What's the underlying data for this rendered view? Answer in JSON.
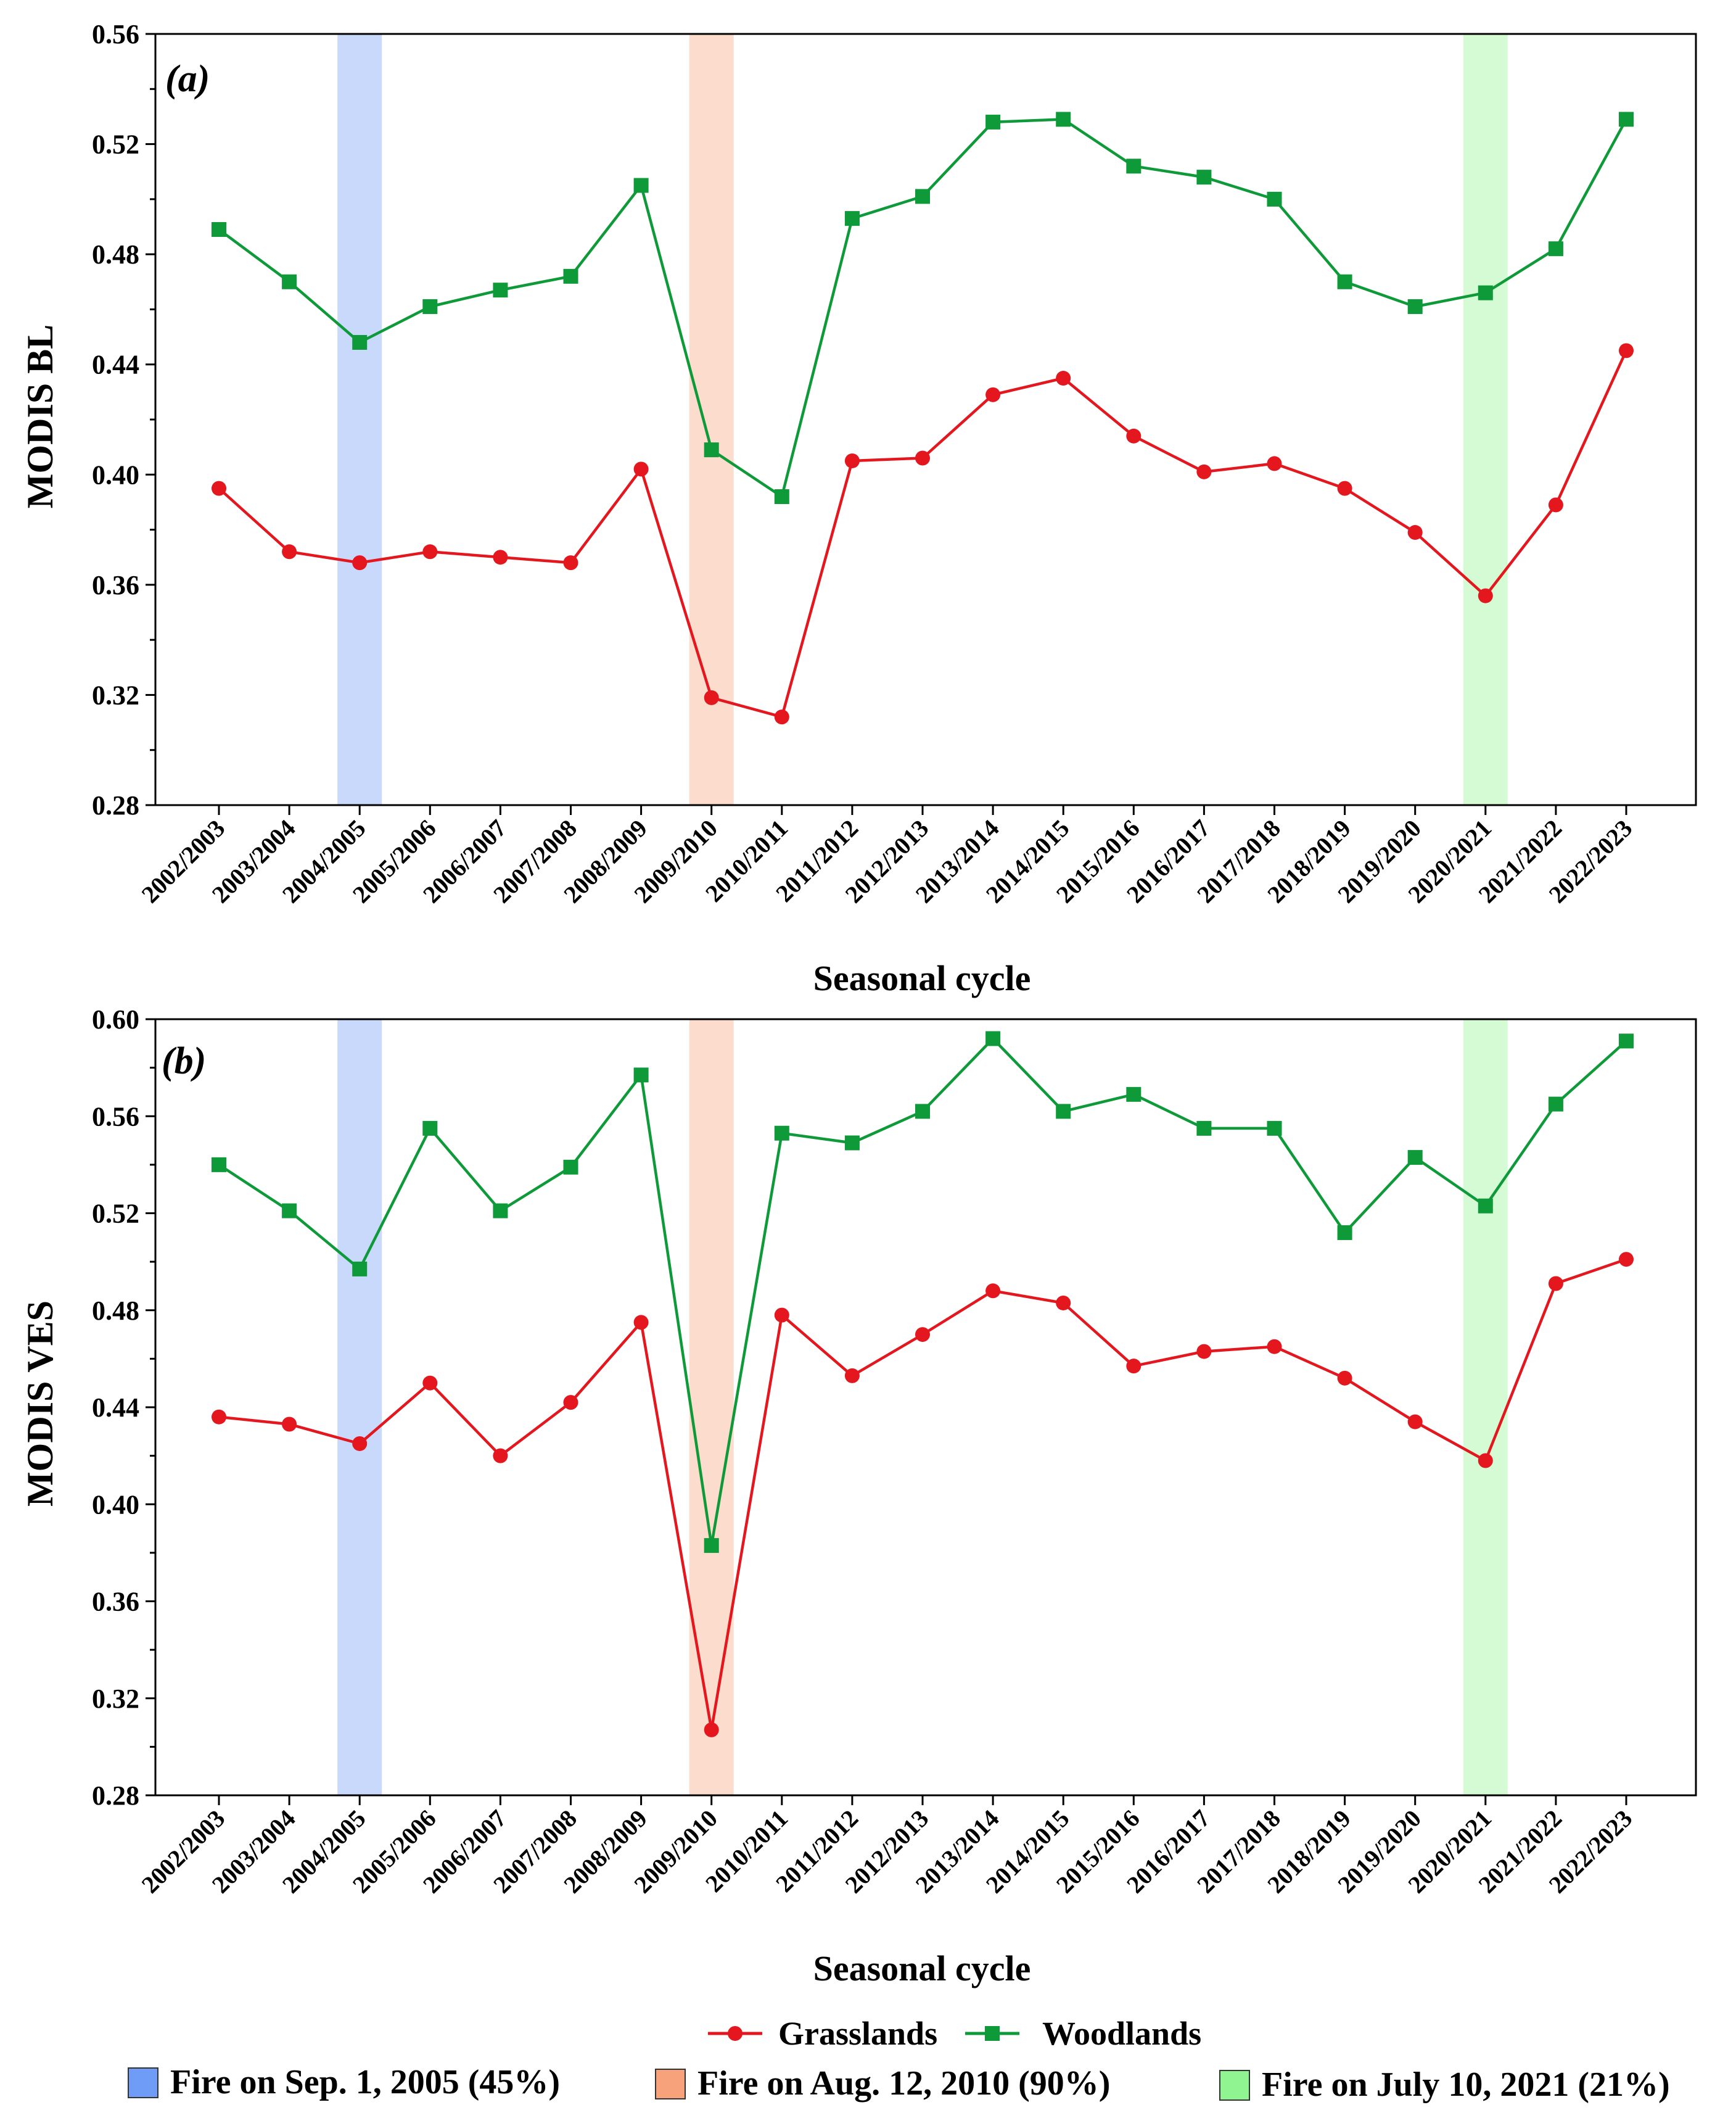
{
  "chart_data": [
    {
      "type": "line",
      "panel_label": "(a)",
      "xlabel": "Seasonal cycle",
      "ylabel": "MODIS BL",
      "ylim": [
        0.28,
        0.56
      ],
      "yticks": [
        "0.28",
        "0.32",
        "0.36",
        "0.40",
        "0.44",
        "0.48",
        "0.52",
        "0.56"
      ],
      "categories": [
        "2002/2003",
        "2003/2004",
        "2004/2005",
        "2005/2006",
        "2006/2007",
        "2007/2008",
        "2008/2009",
        "2009/2010",
        "2010/2011",
        "2011/2012",
        "2012/2013",
        "2013/2014",
        "2014/2015",
        "2015/2016",
        "2016/2017",
        "2017/2018",
        "2018/2019",
        "2019/2020",
        "2020/2021",
        "2021/2022",
        "2022/2023"
      ],
      "series": [
        {
          "name": "Grasslands",
          "color": "#e4161e",
          "marker": "circle",
          "values": [
            0.395,
            0.372,
            0.368,
            0.372,
            0.37,
            0.368,
            0.402,
            0.319,
            0.312,
            0.405,
            0.406,
            0.429,
            0.435,
            0.414,
            0.401,
            0.404,
            0.395,
            0.379,
            0.356,
            0.389,
            0.445
          ]
        },
        {
          "name": "Woodlands",
          "color": "#0f9a3a",
          "marker": "square",
          "values": [
            0.489,
            0.47,
            0.448,
            0.461,
            0.467,
            0.472,
            0.505,
            0.409,
            0.392,
            0.493,
            0.501,
            0.528,
            0.529,
            0.512,
            0.508,
            0.5,
            0.47,
            0.461,
            0.466,
            0.482,
            0.529
          ]
        }
      ]
    },
    {
      "type": "line",
      "panel_label": "(b)",
      "xlabel": "Seasonal cycle",
      "ylabel": "MODIS VES",
      "ylim": [
        0.28,
        0.6
      ],
      "yticks": [
        "0.28",
        "0.32",
        "0.36",
        "0.40",
        "0.44",
        "0.48",
        "0.52",
        "0.56",
        "0.60"
      ],
      "categories": [
        "2002/2003",
        "2003/2004",
        "2004/2005",
        "2005/2006",
        "2006/2007",
        "2007/2008",
        "2008/2009",
        "2009/2010",
        "2010/2011",
        "2011/2012",
        "2012/2013",
        "2013/2014",
        "2014/2015",
        "2015/2016",
        "2016/2017",
        "2017/2018",
        "2018/2019",
        "2019/2020",
        "2020/2021",
        "2021/2022",
        "2022/2023"
      ],
      "series": [
        {
          "name": "Grasslands",
          "color": "#e4161e",
          "marker": "circle",
          "values": [
            0.436,
            0.433,
            0.425,
            0.45,
            0.42,
            0.442,
            0.475,
            0.307,
            0.478,
            0.453,
            0.47,
            0.488,
            0.483,
            0.457,
            0.463,
            0.465,
            0.452,
            0.434,
            0.418,
            0.491,
            0.501
          ]
        },
        {
          "name": "Woodlands",
          "color": "#0f9a3a",
          "marker": "square",
          "values": [
            0.54,
            0.521,
            0.497,
            0.555,
            0.521,
            0.539,
            0.577,
            0.383,
            0.553,
            0.549,
            0.562,
            0.592,
            0.562,
            0.569,
            0.555,
            0.555,
            0.512,
            0.543,
            0.523,
            0.565,
            0.591
          ]
        }
      ]
    }
  ],
  "fire_bands": [
    {
      "category": "2004/2005",
      "color": "#6e9cf7",
      "label": "Fire on Sep. 1, 2005 (45%)"
    },
    {
      "category": "2009/2010",
      "color": "#f7a27a",
      "label": "Fire on Aug. 12, 2010 (90%)"
    },
    {
      "category": "2020/2021",
      "color": "#90f590",
      "label": "Fire on July 10, 2021 (21%)"
    }
  ],
  "legend": {
    "series_labels": [
      "Grasslands",
      "Woodlands"
    ]
  },
  "colors": {
    "grasslands": "#e4161e",
    "woodlands": "#0f9a3a",
    "band_blue": "#6e9cf7",
    "band_orange": "#f7a27a",
    "band_green": "#90f590"
  }
}
